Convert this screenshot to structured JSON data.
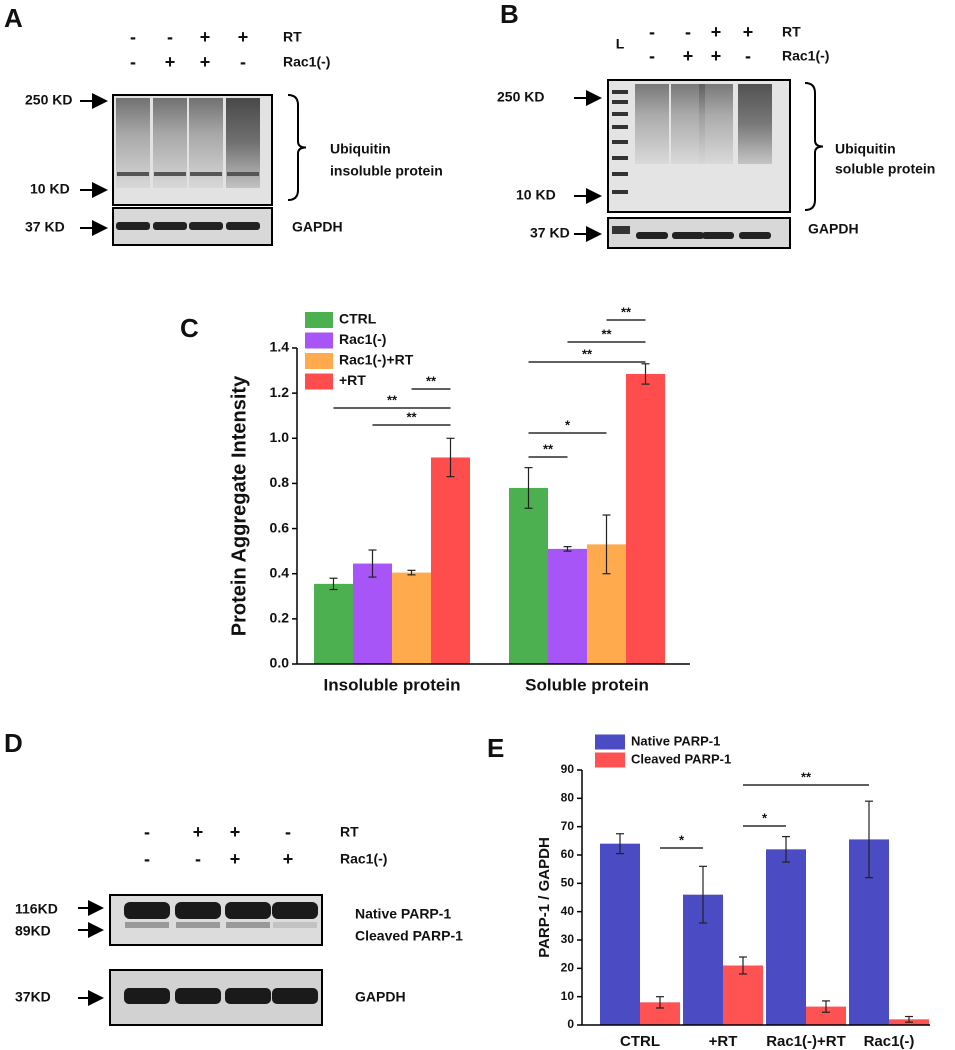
{
  "figure": {
    "A": {
      "letter": "A",
      "treatments": [
        {
          "label": "RT",
          "signs": [
            "-",
            "-",
            "+",
            "+"
          ]
        },
        {
          "label": "Rac1(-)",
          "signs": [
            "-",
            "+",
            "+",
            "-"
          ]
        }
      ],
      "markers": [
        "250 KD",
        "10 KD",
        "37 KD"
      ],
      "bracket_label": [
        "Ubiquitin",
        "insoluble protein"
      ],
      "loading_control": "GAPDH"
    },
    "B": {
      "letter": "B",
      "ladder": "L",
      "treatments": [
        {
          "label": "RT",
          "signs": [
            "-",
            "-",
            "+",
            "+"
          ]
        },
        {
          "label": "Rac1(-)",
          "signs": [
            "-",
            "+",
            "+",
            "-"
          ]
        }
      ],
      "markers": [
        "250 KD",
        "10 KD",
        "37 KD"
      ],
      "bracket_label": [
        "Ubiquitin",
        "soluble protein"
      ],
      "loading_control": "GAPDH"
    },
    "D": {
      "letter": "D",
      "treatments": [
        {
          "label": "RT",
          "signs": [
            "-",
            "+",
            "+",
            "-"
          ]
        },
        {
          "label": "Rac1(-)",
          "signs": [
            "-",
            "-",
            "+",
            "+"
          ]
        }
      ],
      "markers": [
        "116KD",
        "89KD",
        "37KD"
      ],
      "band_labels": [
        "Native PARP-1",
        "Cleaved PARP-1"
      ],
      "loading_control": "GAPDH"
    }
  },
  "chart_data": [
    {
      "type": "bar",
      "panel_label": "C",
      "ylabel": "Protein Aggregate Intensity",
      "categories": [
        "Insoluble protein",
        "Soluble protein"
      ],
      "series": [
        {
          "name": "CTRL",
          "color": "#4caf50",
          "values": [
            0.355,
            0.78
          ],
          "errors": [
            0.025,
            0.09
          ]
        },
        {
          "name": "Rac1(-)",
          "color": "#a855f7",
          "values": [
            0.445,
            0.51
          ],
          "errors": [
            0.06,
            0.01
          ]
        },
        {
          "name": "Rac1(-)+RT",
          "color": "#ffaa4d",
          "values": [
            0.405,
            0.53
          ],
          "errors": [
            0.01,
            0.13
          ]
        },
        {
          "name": "+RT",
          "color": "#ff4d4d",
          "values": [
            0.915,
            1.285
          ],
          "errors": [
            0.085,
            0.045
          ]
        }
      ],
      "ylim": [
        0,
        1.4
      ],
      "yticks": [
        {
          "value": 0,
          "label": "0.0"
        },
        0.2,
        0.4,
        0.6,
        0.8,
        {
          "value": 1,
          "label": "1.0"
        },
        1.2,
        1.4
      ],
      "legend": "upper left",
      "comparisons": [
        {
          "category": 0,
          "series": [
            2,
            3
          ],
          "label": "**"
        },
        {
          "category": 0,
          "series": [
            0,
            3
          ],
          "label": "**"
        },
        {
          "category": 0,
          "series": [
            1,
            3
          ],
          "label": "**"
        },
        {
          "category": 1,
          "series": [
            2,
            3
          ],
          "label": "**"
        },
        {
          "category": 1,
          "series": [
            1,
            3
          ],
          "label": "**"
        },
        {
          "category": 1,
          "series": [
            0,
            3
          ],
          "label": "**"
        },
        {
          "category": 1,
          "series": [
            0,
            2
          ],
          "label": "*"
        },
        {
          "category": 1,
          "series": [
            0,
            1
          ],
          "label": "**"
        }
      ]
    },
    {
      "type": "bar",
      "panel_label": "E",
      "ylabel": "PARP-1 / GAPDH",
      "categories": [
        "CTRL",
        "+RT",
        "Rac1(-)+RT",
        "Rac1(-)"
      ],
      "series": [
        {
          "name": "Native PARP-1",
          "color": "#4b4bc4",
          "values": [
            64,
            46,
            62,
            65.5
          ],
          "errors": [
            3.5,
            10,
            4.5,
            13.5
          ]
        },
        {
          "name": "Cleaved PARP-1",
          "color": "#ff5252",
          "values": [
            8,
            21,
            6.5,
            2
          ],
          "errors": [
            2,
            3,
            2,
            1
          ]
        }
      ],
      "ylim": [
        0,
        90
      ],
      "yticks": [
        0,
        10,
        20,
        30,
        40,
        50,
        60,
        70,
        80,
        90
      ],
      "legend": "upper left",
      "comparisons": [
        {
          "categories": [
            0,
            1
          ],
          "label": "*"
        },
        {
          "categories": [
            1,
            2
          ],
          "label": "*"
        },
        {
          "categories": [
            1,
            3
          ],
          "label": "**"
        }
      ]
    }
  ]
}
